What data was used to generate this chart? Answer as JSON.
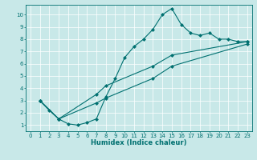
{
  "title": "",
  "xlabel": "Humidex (Indice chaleur)",
  "bg_color": "#c8e8e8",
  "line_color": "#007070",
  "grid_color": "#ffffff",
  "xlim": [
    -0.5,
    23.5
  ],
  "ylim": [
    0.5,
    10.8
  ],
  "xticks": [
    0,
    1,
    2,
    3,
    4,
    5,
    6,
    7,
    8,
    9,
    10,
    11,
    12,
    13,
    14,
    15,
    16,
    17,
    18,
    19,
    20,
    21,
    22,
    23
  ],
  "yticks": [
    1,
    2,
    3,
    4,
    5,
    6,
    7,
    8,
    9,
    10
  ],
  "curve1_x": [
    1,
    2,
    3,
    4,
    5,
    6,
    7,
    8,
    9,
    10,
    11,
    12,
    13,
    14,
    15,
    16,
    17,
    18,
    19,
    20,
    21,
    22,
    23
  ],
  "curve1_y": [
    3.0,
    2.2,
    1.5,
    1.1,
    1.0,
    1.2,
    1.5,
    3.3,
    4.8,
    6.5,
    7.4,
    8.0,
    8.8,
    10.0,
    10.5,
    9.2,
    8.5,
    8.3,
    8.5,
    8.0,
    8.0,
    7.8,
    7.8
  ],
  "curve2_x": [
    1,
    3,
    7,
    8,
    13,
    15,
    23
  ],
  "curve2_y": [
    3.0,
    1.5,
    3.5,
    4.2,
    5.8,
    6.7,
    7.8
  ],
  "curve3_x": [
    1,
    3,
    7,
    8,
    13,
    15,
    23
  ],
  "curve3_y": [
    3.0,
    1.5,
    2.8,
    3.2,
    4.8,
    5.8,
    7.6
  ],
  "tick_fontsize": 5,
  "xlabel_fontsize": 6,
  "linewidth": 0.8,
  "markersize": 2
}
